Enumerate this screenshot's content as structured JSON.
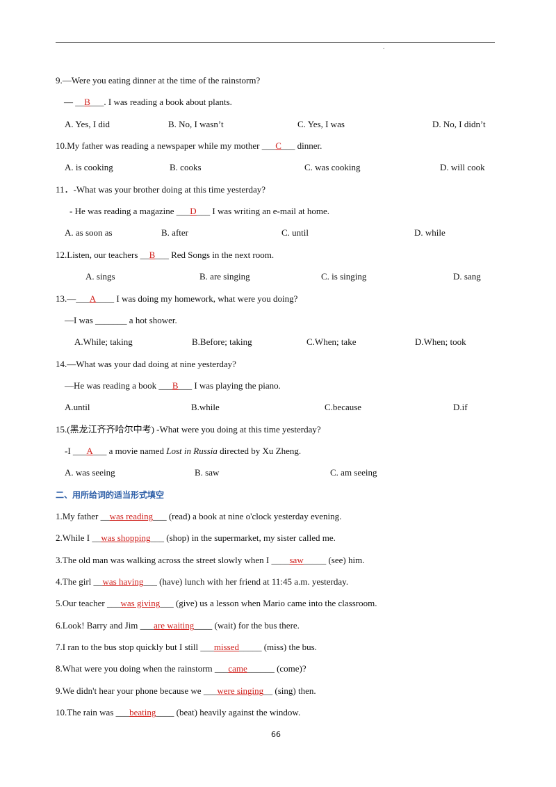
{
  "header": {
    "mark": "."
  },
  "questions": [
    {
      "lines": [
        [
          {
            "text": "9.—Were you eating dinner at the time of the rainstorm?"
          }
        ],
        [
          {
            "text": "— __"
          },
          {
            "answer": "B"
          },
          {
            "text": "___. I was reading a book about plants."
          }
        ]
      ],
      "options": [
        "A. Yes, I did",
        "B. No, I wasn’t",
        "C. Yes, I was",
        "D. No, I didn’t"
      ]
    },
    {
      "lines": [
        [
          {
            "text": "10.My father was reading a newspaper while my mother ___"
          },
          {
            "answer": "C"
          },
          {
            "text": "___ dinner."
          }
        ]
      ],
      "options": [
        "A. is cooking",
        "B. cooks",
        "C. was cooking",
        "D. will cook"
      ]
    },
    {
      "lines": [
        [
          {
            "text": "11．-What was your brother doing at this time yesterday?"
          }
        ],
        [
          {
            "text": "- He was reading a magazine ___"
          },
          {
            "answer": "D"
          },
          {
            "text": "___ I was writing an e-mail at home."
          }
        ]
      ],
      "options": [
        "A. as soon as",
        "B. after",
        "C. until",
        "D. while"
      ]
    },
    {
      "lines": [
        [
          {
            "text": "12.Listen, our teachers __"
          },
          {
            "answer": "B"
          },
          {
            "text": "___ Red Songs in the next room."
          }
        ]
      ],
      "options": [
        "A. sings",
        "B. are singing",
        "C. is singing",
        "D. sang"
      ]
    },
    {
      "lines": [
        [
          {
            "text": "13.—___"
          },
          {
            "answer": "A"
          },
          {
            "text": "____ I was doing my homework, what were you doing?"
          }
        ],
        [
          {
            "text": "—I was _______ a hot shower."
          }
        ]
      ],
      "options": [
        "A.While; taking",
        "B.Before; taking",
        "C.When; take",
        "D.When; took"
      ]
    },
    {
      "lines": [
        [
          {
            "text": "14.—What was your dad doing at nine yesterday?"
          }
        ],
        [
          {
            "text": "—He was reading a book ___"
          },
          {
            "answer": "B"
          },
          {
            "text": "___ I was playing the piano."
          }
        ]
      ],
      "options": [
        "A.until",
        "B.while",
        "C.because",
        "D.if"
      ]
    },
    {
      "lines": [
        [
          {
            "text": "15.(黑龙江齐齐哈尔中考) -What were you doing at this time yesterday?"
          }
        ],
        [
          {
            "text": "-I ___"
          },
          {
            "answer": "A"
          },
          {
            "text": "___ a movie named "
          },
          {
            "italic": "Lost in Russia"
          },
          {
            "text": " directed by Xu Zheng."
          }
        ]
      ],
      "options": [
        "A. was seeing",
        "B. saw",
        "C. am seeing"
      ]
    }
  ],
  "section_title": "二、用所给词的适当形式填空",
  "fill_items": [
    [
      {
        "text": "1.My father __"
      },
      {
        "answer": "was reading"
      },
      {
        "text": "___ (read) a book at nine o'clock yesterday evening."
      }
    ],
    [
      {
        "text": "2.While I __"
      },
      {
        "answer": "was shopping"
      },
      {
        "text": "___ (shop) in the supermarket, my sister called me."
      }
    ],
    [
      {
        "text": "3.The old man was walking across the street slowly when I ____"
      },
      {
        "answer": "saw"
      },
      {
        "text": "_____ (see) him."
      }
    ],
    [
      {
        "text": "4.The girl __"
      },
      {
        "answer": "was having"
      },
      {
        "text": "___ (have) lunch with her friend at 11:45 a.m. yesterday."
      }
    ],
    [
      {
        "text": "5.Our teacher ___"
      },
      {
        "answer": "was giving"
      },
      {
        "text": "___ (give) us a lesson when Mario came into the classroom."
      }
    ],
    [
      {
        "text": "6.Look! Barry and Jim ___"
      },
      {
        "answer": "are waiting"
      },
      {
        "text": "____ (wait) for the bus there."
      }
    ],
    [
      {
        "text": "7.I ran to the bus stop quickly but I still ___"
      },
      {
        "answer": "missed"
      },
      {
        "text": "_____ (miss) the bus."
      }
    ],
    [
      {
        "text": "8.What were you doing when the rainstorm ___"
      },
      {
        "answer": "came"
      },
      {
        "text": "______ (come)?"
      }
    ],
    [
      {
        "text": "9.We didn't hear your phone because we ___"
      },
      {
        "answer": "were singing"
      },
      {
        "text": "__ (sing) then."
      }
    ],
    [
      {
        "text": "10.The rain was ___"
      },
      {
        "answer": "beating"
      },
      {
        "text": "____ (beat) heavily against the window."
      }
    ]
  ],
  "page_number": "66"
}
